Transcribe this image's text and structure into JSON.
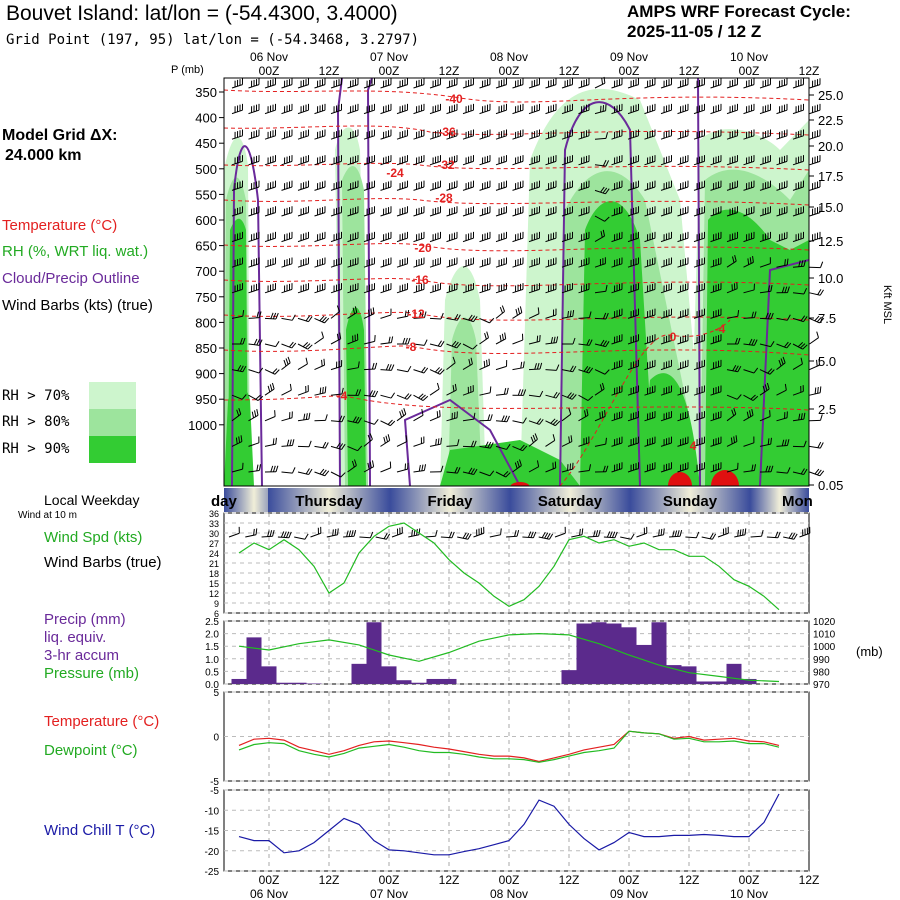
{
  "header": {
    "title": "Bouvet Island:  lat/lon = (-54.4300, 3.4000)",
    "cycle_line1": "AMPS WRF Forecast Cycle:",
    "cycle_line2": "2025-11-05 / 12  Z",
    "grid_point": "Grid Point (197, 95) lat/lon = (-54.3468, 3.2797)"
  },
  "time_axis": {
    "top_days": [
      "06 Nov",
      "07 Nov",
      "08 Nov",
      "09 Nov",
      "10 Nov"
    ],
    "hours": [
      "00Z",
      "12Z",
      "00Z",
      "12Z",
      "00Z",
      "12Z",
      "00Z",
      "12Z",
      "00Z",
      "12Z"
    ],
    "bottom_days": [
      "06 Nov",
      "07 Nov",
      "08 Nov",
      "09 Nov",
      "10 Nov"
    ]
  },
  "upper_panel": {
    "p_label": "P (mb)",
    "pressure_ticks": [
      "350",
      "400",
      "450",
      "500",
      "550",
      "600",
      "650",
      "700",
      "750",
      "800",
      "850",
      "900",
      "950",
      "1000"
    ],
    "height_ticks": [
      "25.0",
      "22.5",
      "20.0",
      "17.5",
      "15.0",
      "12.5",
      "10.0",
      "7.5",
      "5.0",
      "2.5",
      "0.05"
    ],
    "height_label": "Kft MSL",
    "model_grid_label": "Model Grid ΔX:",
    "model_grid_value": "24.000 km",
    "legend_temperature": "Temperature (°C)",
    "legend_rh": "RH (%, WRT liq. wat.)",
    "legend_cloud": "Cloud/Precip Outline",
    "legend_wind": "Wind Barbs (kts) (true)",
    "rh_levels": [
      "RH > 70%",
      "RH > 80%",
      "RH > 90%"
    ],
    "temperature_labels": [
      "-40",
      "-36",
      "-32",
      "-28",
      "-24",
      "-20",
      "-16",
      "-12",
      "-8",
      "-4",
      "0",
      "-4",
      "4"
    ],
    "colors": {
      "temp": "#e8201e",
      "cloud": "#6a2a9a",
      "rh70": "#cdf5cd",
      "rh80": "#9de49d",
      "rh90": "#33cc33"
    }
  },
  "weekday_bar": {
    "label": "Local Weekday",
    "days": [
      "day",
      "Thursday",
      "Friday",
      "Saturday",
      "Sunday",
      "Mon"
    ]
  },
  "chart_data": [
    {
      "type": "line",
      "title": "",
      "label_top": "Wind at 10 m",
      "series_labels": [
        "Wind Spd (kts)",
        "Wind Barbs (true)"
      ],
      "y_ticks": [
        "36",
        "33",
        "30",
        "27",
        "24",
        "21",
        "18",
        "15",
        "12",
        "9",
        "6"
      ],
      "ylim": [
        6,
        36
      ],
      "series": [
        {
          "name": "Wind Spd (kts)",
          "color": "#22bb22",
          "x": [
            -6,
            -3,
            0,
            3,
            6,
            9,
            12,
            15,
            18,
            21,
            24,
            27,
            30,
            33,
            36,
            39,
            42,
            45,
            48,
            51,
            54,
            57,
            60,
            63,
            66,
            69,
            72,
            75,
            78,
            81,
            84,
            87,
            90,
            93,
            96,
            99,
            102
          ],
          "values": [
            24,
            27,
            25,
            28,
            25,
            20,
            12,
            15,
            24,
            29,
            32,
            33,
            30,
            27,
            22,
            18,
            15,
            11,
            8,
            10,
            14,
            20,
            28,
            29,
            27,
            28,
            26,
            27,
            25,
            25,
            23,
            23,
            20,
            16,
            14,
            11,
            7
          ]
        }
      ]
    },
    {
      "type": "bar",
      "title": "",
      "series_labels": [
        "Precip (mm)",
        "liq. equiv.",
        "3-hr accum",
        "Pressure (mb)"
      ],
      "left_ticks": [
        "2.5",
        "2.0",
        "1.5",
        "1.0",
        "0.5",
        "0.0"
      ],
      "right_ticks": [
        "1020",
        "1010",
        "1000",
        "990",
        "980",
        "970"
      ],
      "right_unit": "(mb)",
      "ylim": [
        0,
        2.5
      ],
      "y2lim": [
        970,
        1020
      ],
      "precip": {
        "color": "#5b2a8c",
        "x": [
          -6,
          -3,
          0,
          3,
          6,
          9,
          12,
          15,
          18,
          21,
          24,
          27,
          30,
          33,
          36,
          39,
          42,
          45,
          48,
          51,
          54,
          57,
          60,
          63,
          66,
          69,
          72,
          75,
          78,
          81,
          84,
          87,
          90,
          93,
          96,
          99,
          102
        ],
        "values": [
          0.2,
          1.85,
          0.7,
          0.05,
          0.05,
          0.02,
          0,
          0,
          0.8,
          2.45,
          0.7,
          0.15,
          0.05,
          0.2,
          0.2,
          0,
          0,
          0,
          0,
          0,
          0,
          0,
          0.55,
          2.4,
          2.45,
          2.4,
          2.25,
          1.55,
          2.45,
          0.75,
          0.7,
          0.1,
          0.1,
          0.8,
          0.2,
          0,
          0
        ]
      },
      "pressure": {
        "name": "Pressure (mb)",
        "color": "#22bb22",
        "x": [
          -6,
          0,
          6,
          12,
          18,
          24,
          30,
          36,
          42,
          48,
          54,
          60,
          66,
          72,
          78,
          84,
          90,
          96,
          102
        ],
        "values": [
          1000,
          997,
          1002,
          1005,
          1001,
          993,
          988,
          995,
          1004,
          1009,
          1010,
          1009,
          1002,
          993,
          985,
          979,
          976,
          973,
          972
        ]
      }
    },
    {
      "type": "line",
      "title": "",
      "series_labels": [
        "Temperature (°C)",
        "Dewpoint (°C)"
      ],
      "y_ticks": [
        "5",
        "0",
        "-5"
      ],
      "ylim": [
        -5,
        5
      ],
      "series": [
        {
          "name": "Temperature (°C)",
          "color": "#e32020",
          "x": [
            -6,
            -3,
            0,
            3,
            6,
            9,
            12,
            15,
            18,
            21,
            24,
            27,
            30,
            33,
            36,
            39,
            42,
            45,
            48,
            51,
            54,
            57,
            60,
            63,
            66,
            69,
            72,
            75,
            78,
            81,
            84,
            87,
            90,
            93,
            96,
            99,
            102
          ],
          "values": [
            -1.0,
            -0.3,
            -0.2,
            -0.4,
            -1.2,
            -1.6,
            -2.0,
            -1.6,
            -1.0,
            -0.6,
            -0.5,
            -0.7,
            -0.9,
            -1.2,
            -1.4,
            -1.7,
            -2.0,
            -2.2,
            -2.2,
            -2.4,
            -2.8,
            -2.4,
            -2.0,
            -1.5,
            -1.2,
            -0.9,
            0.6,
            0.4,
            0.3,
            -0.2,
            0.0,
            -0.4,
            -0.3,
            -0.2,
            -0.5,
            -0.6,
            -1.0
          ]
        },
        {
          "name": "Dewpoint (°C)",
          "color": "#22bb22",
          "x": [
            -6,
            -3,
            0,
            3,
            6,
            9,
            12,
            15,
            18,
            21,
            24,
            27,
            30,
            33,
            36,
            39,
            42,
            45,
            48,
            51,
            54,
            57,
            60,
            63,
            66,
            69,
            72,
            75,
            78,
            81,
            84,
            87,
            90,
            93,
            96,
            99,
            102
          ],
          "values": [
            -1.5,
            -0.9,
            -0.7,
            -0.8,
            -1.6,
            -2.0,
            -2.3,
            -1.9,
            -1.3,
            -1.1,
            -0.9,
            -1.2,
            -1.6,
            -1.8,
            -1.8,
            -2.0,
            -2.3,
            -2.5,
            -2.5,
            -2.6,
            -2.9,
            -2.6,
            -2.2,
            -1.8,
            -1.6,
            -1.3,
            0.6,
            0.4,
            0.3,
            -0.3,
            -0.2,
            -0.6,
            -0.6,
            -0.5,
            -0.8,
            -0.8,
            -1.2
          ]
        }
      ]
    },
    {
      "type": "line",
      "title": "",
      "series_labels": [
        "Wind Chill T (°C)"
      ],
      "y_ticks": [
        "-5",
        "-10",
        "-15",
        "-20",
        "-25"
      ],
      "ylim": [
        -25,
        -5
      ],
      "series": [
        {
          "name": "Wind Chill T (°C)",
          "color": "#1a1aa6",
          "x": [
            -6,
            -3,
            0,
            3,
            6,
            9,
            12,
            15,
            18,
            21,
            24,
            27,
            30,
            33,
            36,
            39,
            42,
            45,
            48,
            51,
            54,
            57,
            60,
            63,
            66,
            69,
            72,
            75,
            78,
            81,
            84,
            87,
            90,
            93,
            96,
            99,
            102
          ],
          "values": [
            -16.5,
            -17.5,
            -17.5,
            -20.5,
            -20.0,
            -18.0,
            -15.0,
            -12.0,
            -13.5,
            -17.5,
            -19.8,
            -20.0,
            -20.5,
            -21.0,
            -21.0,
            -20.2,
            -19.5,
            -18.5,
            -17.5,
            -13.5,
            -7.5,
            -9.0,
            -13.5,
            -17.0,
            -19.8,
            -18.0,
            -15.5,
            -16.5,
            -16.5,
            -16.2,
            -16.2,
            -16.0,
            -16.2,
            -16.5,
            -16.5,
            -13.0,
            -6.0
          ]
        }
      ]
    }
  ]
}
